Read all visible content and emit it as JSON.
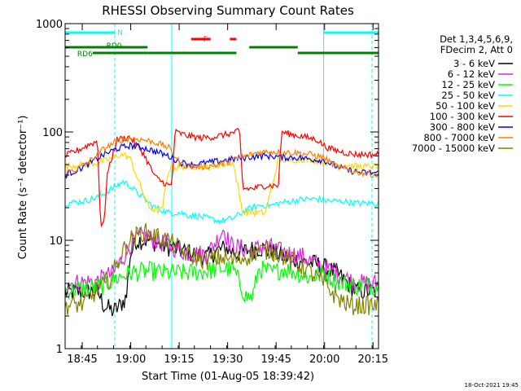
{
  "chart_data": {
    "type": "line",
    "title": "RHESSI Observing Summary Count Rates",
    "xlabel": "Start Time (01-Aug-05 18:39:42)",
    "ylabel": "Count Rate (s⁻¹ detector⁻¹)",
    "yscale": "log",
    "ylim": [
      1,
      1000
    ],
    "xlim_minutes": [
      0,
      97
    ],
    "x_ticks": [
      {
        "t": 5.3,
        "label": "18:45"
      },
      {
        "t": 20.3,
        "label": "19:00"
      },
      {
        "t": 35.3,
        "label": "19:15"
      },
      {
        "t": 50.3,
        "label": "19:30"
      },
      {
        "t": 65.3,
        "label": "19:45"
      },
      {
        "t": 80.3,
        "label": "20:00"
      },
      {
        "t": 95.3,
        "label": "20:15"
      }
    ],
    "y_ticks": [
      {
        "v": 1,
        "label": "1"
      },
      {
        "v": 10,
        "label": "10"
      },
      {
        "v": 100,
        "label": "100"
      },
      {
        "v": 1000,
        "label": "1000"
      }
    ],
    "legend_header": [
      "Det 1,3,4,5,6,9,",
      "FDecim 2, Att 0"
    ],
    "legend_placement": "right",
    "footer_date": "18-Oct-2021 19:45",
    "series": [
      {
        "name": "3 - 6 keV",
        "color": "#000000",
        "points": [
          [
            0,
            3.3
          ],
          [
            10,
            3.4
          ],
          [
            12,
            2.5
          ],
          [
            15,
            2.2
          ],
          [
            17,
            2.5
          ],
          [
            19,
            3
          ],
          [
            20,
            7
          ],
          [
            22,
            10
          ],
          [
            26,
            10
          ],
          [
            30,
            9
          ],
          [
            33,
            8.5
          ],
          [
            36,
            8
          ],
          [
            40,
            7.5
          ],
          [
            44,
            7
          ],
          [
            47,
            8
          ],
          [
            50,
            8.5
          ],
          [
            53,
            7.5
          ],
          [
            56,
            8
          ],
          [
            60,
            8.5
          ],
          [
            64,
            8
          ],
          [
            68,
            7
          ],
          [
            72,
            6.5
          ],
          [
            78,
            6
          ],
          [
            84,
            5
          ],
          [
            90,
            3.4
          ],
          [
            97,
            3.4
          ]
        ]
      },
      {
        "name": "6 - 12 keV",
        "color": "#e020e0",
        "points": [
          [
            0,
            4
          ],
          [
            10,
            4.2
          ],
          [
            15,
            5
          ],
          [
            18,
            7
          ],
          [
            20,
            9
          ],
          [
            24,
            11
          ],
          [
            28,
            10
          ],
          [
            32,
            9
          ],
          [
            36,
            8
          ],
          [
            40,
            7.5
          ],
          [
            44,
            7.5
          ],
          [
            47,
            10
          ],
          [
            49,
            13
          ],
          [
            51,
            9
          ],
          [
            54,
            8.5
          ],
          [
            58,
            8
          ],
          [
            62,
            9
          ],
          [
            66,
            8
          ],
          [
            70,
            7.5
          ],
          [
            74,
            7
          ],
          [
            78,
            6
          ],
          [
            84,
            5
          ],
          [
            90,
            4
          ],
          [
            97,
            4
          ]
        ]
      },
      {
        "name": "12 - 25 keV",
        "color": "#00ff00",
        "points": [
          [
            0,
            3.5
          ],
          [
            8,
            3.6
          ],
          [
            12,
            3.8
          ],
          [
            16,
            4.5
          ],
          [
            20,
            5
          ],
          [
            26,
            5.2
          ],
          [
            32,
            5
          ],
          [
            38,
            5
          ],
          [
            44,
            5.2
          ],
          [
            48,
            5.5
          ],
          [
            52,
            5.4
          ],
          [
            56,
            3
          ],
          [
            58,
            3
          ],
          [
            60,
            5.5
          ],
          [
            64,
            5
          ],
          [
            68,
            5.5
          ],
          [
            72,
            5
          ],
          [
            76,
            4.5
          ],
          [
            80,
            5
          ],
          [
            84,
            4.2
          ],
          [
            90,
            3.8
          ],
          [
            97,
            3.8
          ]
        ]
      },
      {
        "name": "25 - 50 keV",
        "color": "#00ffff",
        "points": [
          [
            0,
            22
          ],
          [
            6,
            23
          ],
          [
            10,
            25
          ],
          [
            13,
            28
          ],
          [
            16,
            32
          ],
          [
            18,
            35
          ],
          [
            20,
            32
          ],
          [
            22,
            28
          ],
          [
            24,
            25
          ],
          [
            26,
            22
          ],
          [
            28,
            20
          ],
          [
            32,
            18
          ],
          [
            36,
            18
          ],
          [
            38,
            17
          ],
          [
            40,
            17
          ],
          [
            44,
            16
          ],
          [
            48,
            15
          ],
          [
            52,
            16
          ],
          [
            56,
            19
          ],
          [
            60,
            21
          ],
          [
            64,
            21
          ],
          [
            66,
            22
          ],
          [
            70,
            23
          ],
          [
            74,
            24
          ],
          [
            78,
            24
          ],
          [
            82,
            23
          ],
          [
            86,
            23
          ],
          [
            90,
            22
          ],
          [
            97,
            22
          ]
        ]
      },
      {
        "name": "50 - 100 keV",
        "color": "#ffd700",
        "points": [
          [
            0,
            48
          ],
          [
            6,
            50
          ],
          [
            10,
            52
          ],
          [
            13,
            55
          ],
          [
            16,
            60
          ],
          [
            18,
            62
          ],
          [
            20,
            58
          ],
          [
            22,
            40
          ],
          [
            24,
            28
          ],
          [
            26,
            20
          ],
          [
            28,
            19
          ],
          [
            30,
            19
          ],
          [
            32,
            45
          ],
          [
            36,
            48
          ],
          [
            40,
            48
          ],
          [
            44,
            48
          ],
          [
            48,
            50
          ],
          [
            52,
            52
          ],
          [
            55,
            18
          ],
          [
            58,
            18
          ],
          [
            62,
            18
          ],
          [
            66,
            55
          ],
          [
            70,
            55
          ],
          [
            74,
            56
          ],
          [
            78,
            54
          ],
          [
            82,
            52
          ],
          [
            86,
            50
          ],
          [
            90,
            48
          ],
          [
            97,
            48
          ]
        ]
      },
      {
        "name": "100 - 300 keV",
        "color": "#ff0000",
        "points": [
          [
            0,
            60
          ],
          [
            4,
            68
          ],
          [
            8,
            78
          ],
          [
            10,
            82
          ],
          [
            11,
            14
          ],
          [
            12,
            14
          ],
          [
            13,
            40
          ],
          [
            16,
            85
          ],
          [
            20,
            90
          ],
          [
            24,
            65
          ],
          [
            28,
            38
          ],
          [
            32,
            32
          ],
          [
            33,
            32
          ],
          [
            34,
            100
          ],
          [
            38,
            92
          ],
          [
            42,
            88
          ],
          [
            46,
            90
          ],
          [
            50,
            95
          ],
          [
            54,
            102
          ],
          [
            55,
            30
          ],
          [
            58,
            30
          ],
          [
            62,
            32
          ],
          [
            66,
            32
          ],
          [
            67,
            100
          ],
          [
            70,
            95
          ],
          [
            74,
            90
          ],
          [
            78,
            85
          ],
          [
            80,
            75
          ],
          [
            82,
            70
          ],
          [
            86,
            65
          ],
          [
            90,
            62
          ],
          [
            97,
            62
          ]
        ]
      },
      {
        "name": "300 - 800 keV",
        "color": "#0000ff",
        "points": [
          [
            0,
            40
          ],
          [
            4,
            45
          ],
          [
            8,
            52
          ],
          [
            12,
            62
          ],
          [
            16,
            70
          ],
          [
            20,
            75
          ],
          [
            24,
            72
          ],
          [
            28,
            66
          ],
          [
            32,
            60
          ],
          [
            36,
            52
          ],
          [
            40,
            50
          ],
          [
            44,
            52
          ],
          [
            48,
            54
          ],
          [
            52,
            56
          ],
          [
            56,
            58
          ],
          [
            60,
            60
          ],
          [
            64,
            60
          ],
          [
            68,
            58
          ],
          [
            72,
            58
          ],
          [
            76,
            56
          ],
          [
            80,
            55
          ],
          [
            84,
            48
          ],
          [
            88,
            44
          ],
          [
            92,
            42
          ],
          [
            97,
            42
          ]
        ]
      },
      {
        "name": "800 - 7000 keV",
        "color": "#ff8000",
        "points": [
          [
            0,
            42
          ],
          [
            4,
            46
          ],
          [
            8,
            55
          ],
          [
            12,
            70
          ],
          [
            16,
            82
          ],
          [
            20,
            88
          ],
          [
            24,
            85
          ],
          [
            28,
            80
          ],
          [
            32,
            72
          ],
          [
            36,
            50
          ],
          [
            40,
            48
          ],
          [
            44,
            48
          ],
          [
            48,
            50
          ],
          [
            52,
            55
          ],
          [
            56,
            60
          ],
          [
            60,
            65
          ],
          [
            64,
            66
          ],
          [
            68,
            65
          ],
          [
            72,
            64
          ],
          [
            76,
            62
          ],
          [
            80,
            58
          ],
          [
            84,
            48
          ],
          [
            88,
            44
          ],
          [
            92,
            42
          ],
          [
            97,
            40
          ]
        ]
      },
      {
        "name": "7000 - 15000 keV",
        "color": "#808000",
        "points": [
          [
            0,
            2.5
          ],
          [
            6,
            2.6
          ],
          [
            10,
            3.5
          ],
          [
            14,
            4.5
          ],
          [
            18,
            8
          ],
          [
            20,
            10
          ],
          [
            24,
            12
          ],
          [
            28,
            11
          ],
          [
            32,
            10
          ],
          [
            36,
            8
          ],
          [
            40,
            7
          ],
          [
            44,
            6.5
          ],
          [
            48,
            7
          ],
          [
            52,
            6.5
          ],
          [
            56,
            7
          ],
          [
            60,
            8
          ],
          [
            64,
            8
          ],
          [
            68,
            7
          ],
          [
            72,
            6
          ],
          [
            76,
            5
          ],
          [
            80,
            4
          ],
          [
            84,
            3
          ],
          [
            88,
            2.5
          ],
          [
            97,
            2.5
          ]
        ]
      }
    ],
    "flags": [
      {
        "label": "N",
        "color": "#00ffff",
        "segments": [
          [
            0,
            15.4
          ],
          [
            80,
            97
          ]
        ]
      },
      {
        "label": "F",
        "color": "#ff0000",
        "segments": [
          [
            39,
            45
          ],
          [
            51,
            53
          ]
        ]
      },
      {
        "label": "RD0",
        "color": "#008000",
        "segments": [
          [
            8,
            25.5
          ],
          [
            25.5,
            53
          ],
          [
            57,
            72
          ],
          [
            72,
            97
          ]
        ]
      },
      {
        "label": "RD6",
        "color": "#008000",
        "segments": [
          [
            0,
            8.5
          ],
          [
            8.5,
            25.5
          ]
        ]
      }
    ],
    "vlines_solid": [
      0,
      33,
      80
    ],
    "vlines_dashed": [
      15.4,
      95
    ],
    "vline_color": "#00ffff"
  }
}
